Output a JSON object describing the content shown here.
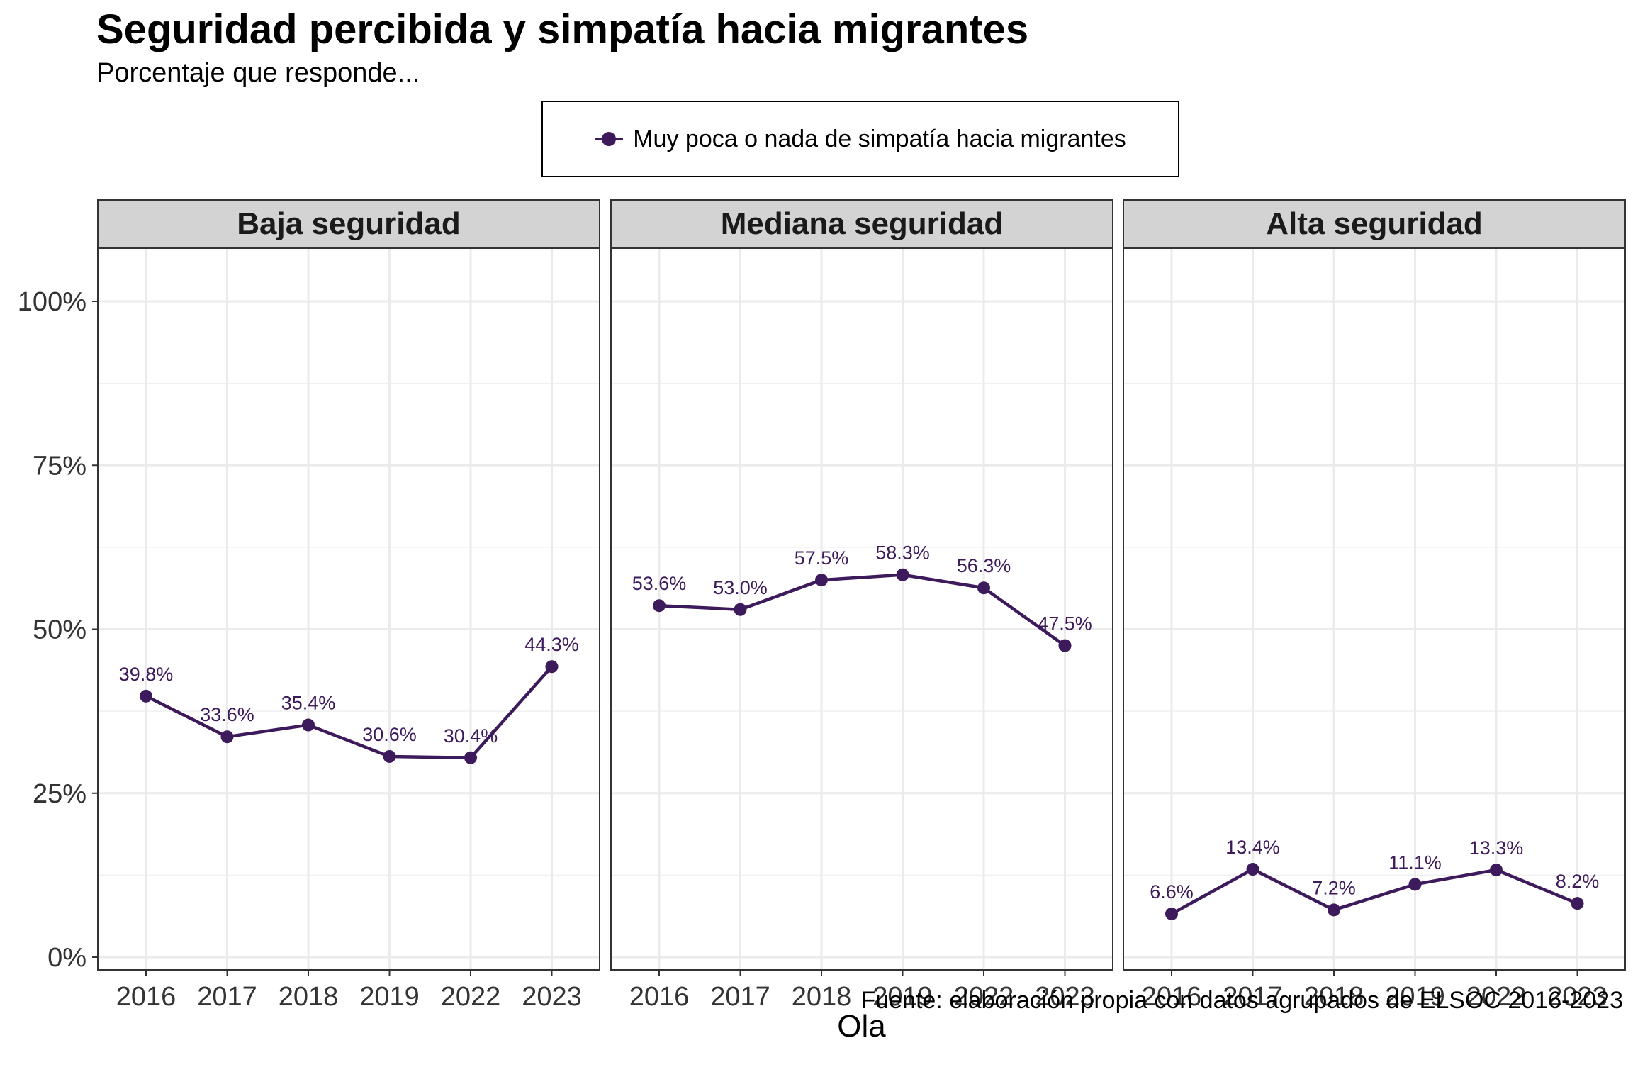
{
  "chart_data": {
    "type": "line",
    "title": "Seguridad percibida y simpatía hacia migrantes",
    "subtitle": "Porcentaje que responde...",
    "caption": "Fuente: elaboración propia con datos agrupados de ELSOC 2016-2023",
    "xlabel": "Ola",
    "ylabel": "",
    "ylim": [
      0,
      108
    ],
    "y_ticks": [
      0,
      25,
      50,
      75,
      100
    ],
    "y_tick_labels": [
      "0%",
      "25%",
      "50%",
      "75%",
      "100%"
    ],
    "categories": [
      "2016",
      "2017",
      "2018",
      "2019",
      "2022",
      "2023"
    ],
    "grid": true,
    "legend_position": "top",
    "series_name": "Muy poca o nada de simpatía hacia migrantes",
    "color": "#3D1A5B",
    "panels": [
      {
        "name": "Baja seguridad",
        "values": [
          39.8,
          33.6,
          35.4,
          30.6,
          30.4,
          44.3
        ],
        "labels": [
          "39.8%",
          "33.6%",
          "35.4%",
          "30.6%",
          "30.4%",
          "44.3%"
        ]
      },
      {
        "name": "Mediana seguridad",
        "values": [
          53.6,
          53.0,
          57.5,
          58.3,
          56.3,
          47.5
        ],
        "labels": [
          "53.6%",
          "53.0%",
          "57.5%",
          "58.3%",
          "56.3%",
          "47.5%"
        ]
      },
      {
        "name": "Alta seguridad",
        "values": [
          6.6,
          13.4,
          7.2,
          11.1,
          13.3,
          8.2
        ],
        "labels": [
          "6.6%",
          "13.4%",
          "7.2%",
          "11.1%",
          "13.3%",
          "8.2%"
        ]
      }
    ]
  }
}
